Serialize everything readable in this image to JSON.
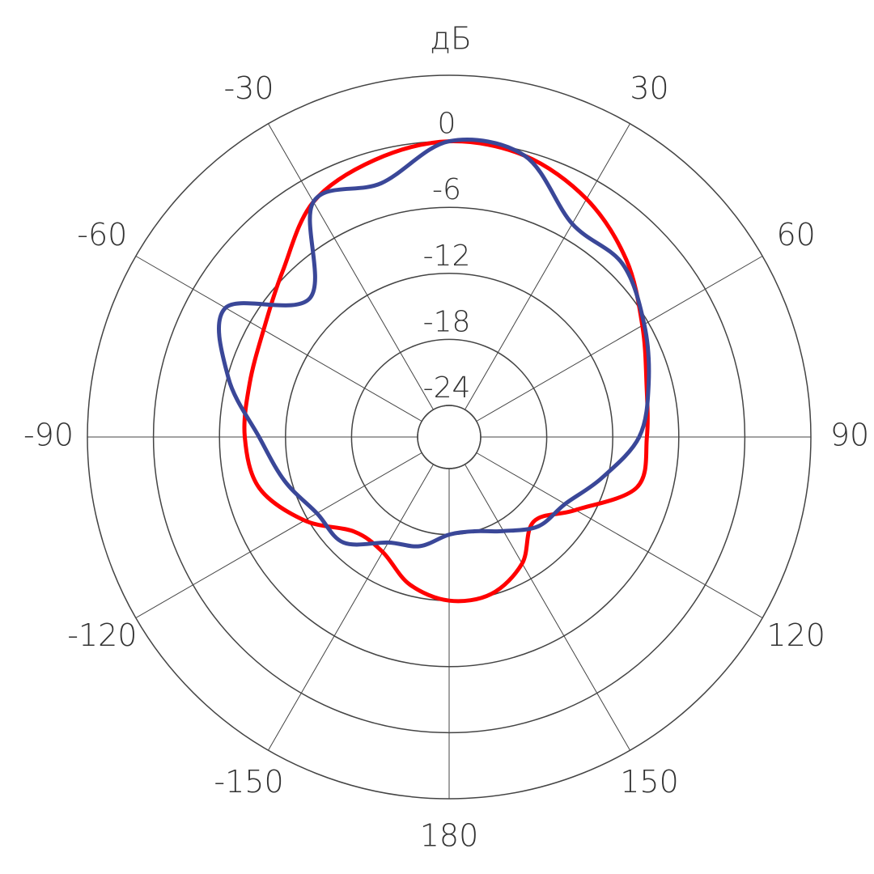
{
  "chart_data": {
    "type": "polar",
    "r_label": "дБ",
    "theta": [
      -165,
      -150,
      -135,
      -120,
      -105,
      -90,
      -75,
      -60,
      -45,
      -30,
      -15,
      0,
      15,
      30,
      45,
      60,
      75,
      90,
      105,
      120,
      135,
      150,
      165,
      180
    ],
    "series": [
      {
        "color": "#ff0000",
        "values": [
          -13,
          -14.8,
          -14.7,
          -11.7,
          -9,
          -8.3,
          -8.1,
          -7.4,
          -5.5,
          -2.2,
          -0.8,
          0,
          -0.4,
          -1.9,
          -4.1,
          -6.6,
          -8.3,
          -8.9,
          -9.2,
          -13.6,
          -16,
          -13.6,
          -12.1,
          -12
        ]
      },
      {
        "color": "#3a4798",
        "values": [
          -16.6,
          -15.8,
          -13.3,
          -13,
          -11.4,
          -9.6,
          -6.1,
          -3.4,
          -9,
          -2.2,
          -3,
          0,
          -0.4,
          -4.5,
          -4.6,
          -6.4,
          -8.1,
          -9.6,
          -12.5,
          -14.7,
          -15.4,
          -17,
          -18,
          -18
        ]
      }
    ],
    "rlim": [
      -24,
      6
    ],
    "rticks": [
      -24,
      -18,
      -12,
      -6,
      0
    ],
    "thetaticks": [
      -150,
      -120,
      -90,
      -60,
      -30,
      30,
      60,
      90,
      120,
      150,
      180
    ]
  }
}
